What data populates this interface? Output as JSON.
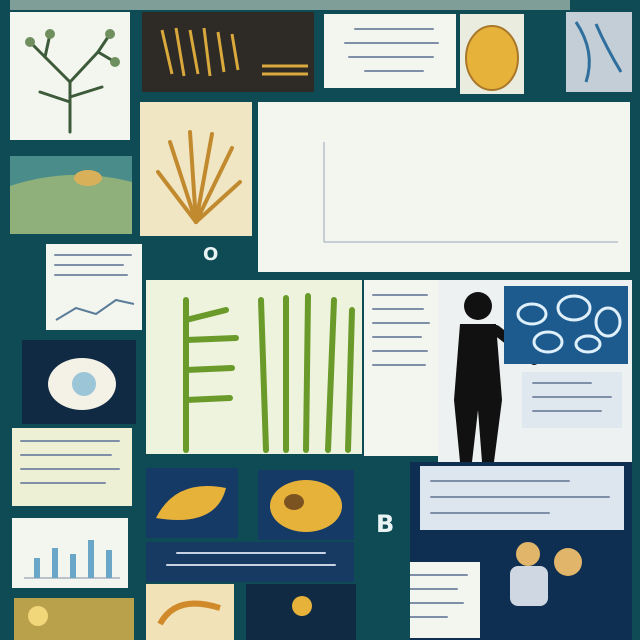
{
  "title_strip": "",
  "chart_panel": {
    "heading": "",
    "caption": "",
    "chart_data": {
      "type": "bar",
      "categories": [],
      "values": [],
      "title": "",
      "xlabel": "",
      "ylabel": ""
    }
  },
  "glyphs": {
    "top_right": "",
    "mid_left": "O",
    "far_left": "",
    "letter_b": "B"
  },
  "colors": {
    "board": "#0f4b54",
    "navy": "#173a63",
    "paper": "#f3f6ee",
    "bar": "#e07a2c",
    "leaf_green": "#6a9a2a",
    "silhouette": "#111111",
    "yellow": "#e7b23a"
  }
}
